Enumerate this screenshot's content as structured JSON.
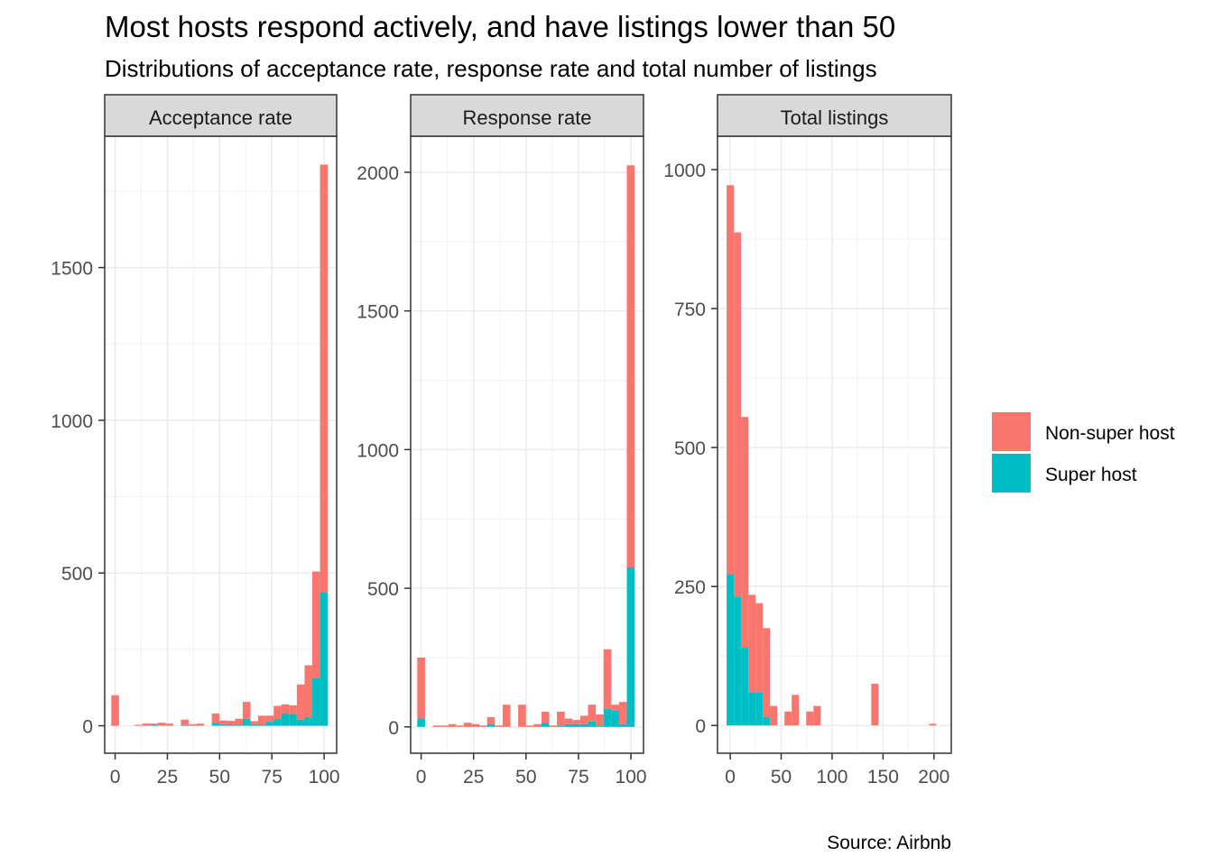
{
  "title": "Most hosts respond actively, and have listings lower than 50",
  "subtitle": "Distributions of acceptance rate, response rate and total number of listings",
  "caption": "Source: Airbnb",
  "legend": {
    "position": "right",
    "items": [
      {
        "label": "Non-super host",
        "color": "#F8766D"
      },
      {
        "label": "Super host",
        "color": "#00BFC4"
      }
    ]
  },
  "chart_data": [
    {
      "type": "bar",
      "stacked": true,
      "panel": "Acceptance rate",
      "grid": true,
      "xlim": [
        -5,
        106
      ],
      "ylim": [
        -90,
        1930
      ],
      "x_ticks": [
        0,
        25,
        50,
        75,
        100
      ],
      "y_ticks": [
        0,
        500,
        1000,
        1500
      ],
      "bin_width": 3.7,
      "x": [
        0,
        11.1,
        14.8,
        18.5,
        22.2,
        25.9,
        33.3,
        37,
        40.7,
        48.1,
        51.8,
        55.5,
        59.2,
        62.9,
        66.6,
        70.3,
        74,
        77.7,
        81.4,
        85.1,
        88.8,
        92.5,
        96.2,
        99.9
      ],
      "series": [
        {
          "name": "Non-super host",
          "values": [
            100,
            3,
            7,
            4,
            10,
            7,
            18,
            5,
            7,
            30,
            12,
            13,
            20,
            55,
            10,
            30,
            20,
            43,
            30,
            30,
            115,
            170,
            350,
            1400
          ]
        },
        {
          "name": "Super host",
          "values": [
            0,
            0,
            0,
            3,
            0,
            0,
            2,
            0,
            0,
            10,
            5,
            3,
            3,
            23,
            5,
            3,
            13,
            22,
            40,
            37,
            20,
            28,
            155,
            437
          ]
        }
      ]
    },
    {
      "type": "bar",
      "stacked": true,
      "panel": "Response rate",
      "grid": true,
      "xlim": [
        -5,
        106
      ],
      "ylim": [
        -95,
        2130
      ],
      "x_ticks": [
        0,
        25,
        50,
        75,
        100
      ],
      "y_ticks": [
        0,
        500,
        1000,
        1500,
        2000
      ],
      "bin_width": 3.7,
      "x": [
        0,
        7.4,
        11.1,
        14.8,
        18.5,
        22.2,
        25.9,
        29.6,
        33.3,
        37,
        40.7,
        48.1,
        51.8,
        55.5,
        59.2,
        62.9,
        66.6,
        70.3,
        74,
        77.7,
        81.4,
        85.1,
        88.8,
        92.5,
        96.2,
        99.9
      ],
      "series": [
        {
          "name": "Non-super host",
          "values": [
            220,
            5,
            5,
            10,
            5,
            15,
            10,
            5,
            25,
            5,
            80,
            80,
            5,
            10,
            40,
            5,
            50,
            20,
            15,
            30,
            60,
            40,
            215,
            20,
            80,
            1450
          ]
        },
        {
          "name": "Super host",
          "values": [
            30,
            0,
            0,
            0,
            0,
            0,
            0,
            0,
            10,
            0,
            0,
            0,
            0,
            0,
            15,
            0,
            5,
            10,
            10,
            10,
            20,
            5,
            65,
            60,
            10,
            575
          ]
        }
      ]
    },
    {
      "type": "bar",
      "stacked": true,
      "panel": "Total listings",
      "grid": true,
      "xlim": [
        -12.5,
        217
      ],
      "ylim": [
        -50,
        1060
      ],
      "x_ticks": [
        0,
        50,
        100,
        150,
        200
      ],
      "y_ticks": [
        0,
        250,
        500,
        750,
        1000
      ],
      "bin_width": 7.1,
      "x": [
        0,
        7.1,
        14.2,
        21.3,
        28.4,
        35.5,
        42.6,
        56.8,
        63.9,
        78.1,
        85.2,
        142,
        198.8
      ],
      "series": [
        {
          "name": "Non-super host",
          "values": [
            700,
            655,
            415,
            175,
            160,
            160,
            35,
            25,
            55,
            25,
            35,
            75,
            3
          ]
        },
        {
          "name": "Super host",
          "values": [
            272,
            232,
            140,
            60,
            60,
            15,
            0,
            0,
            0,
            0,
            0,
            0,
            0
          ]
        }
      ]
    }
  ]
}
